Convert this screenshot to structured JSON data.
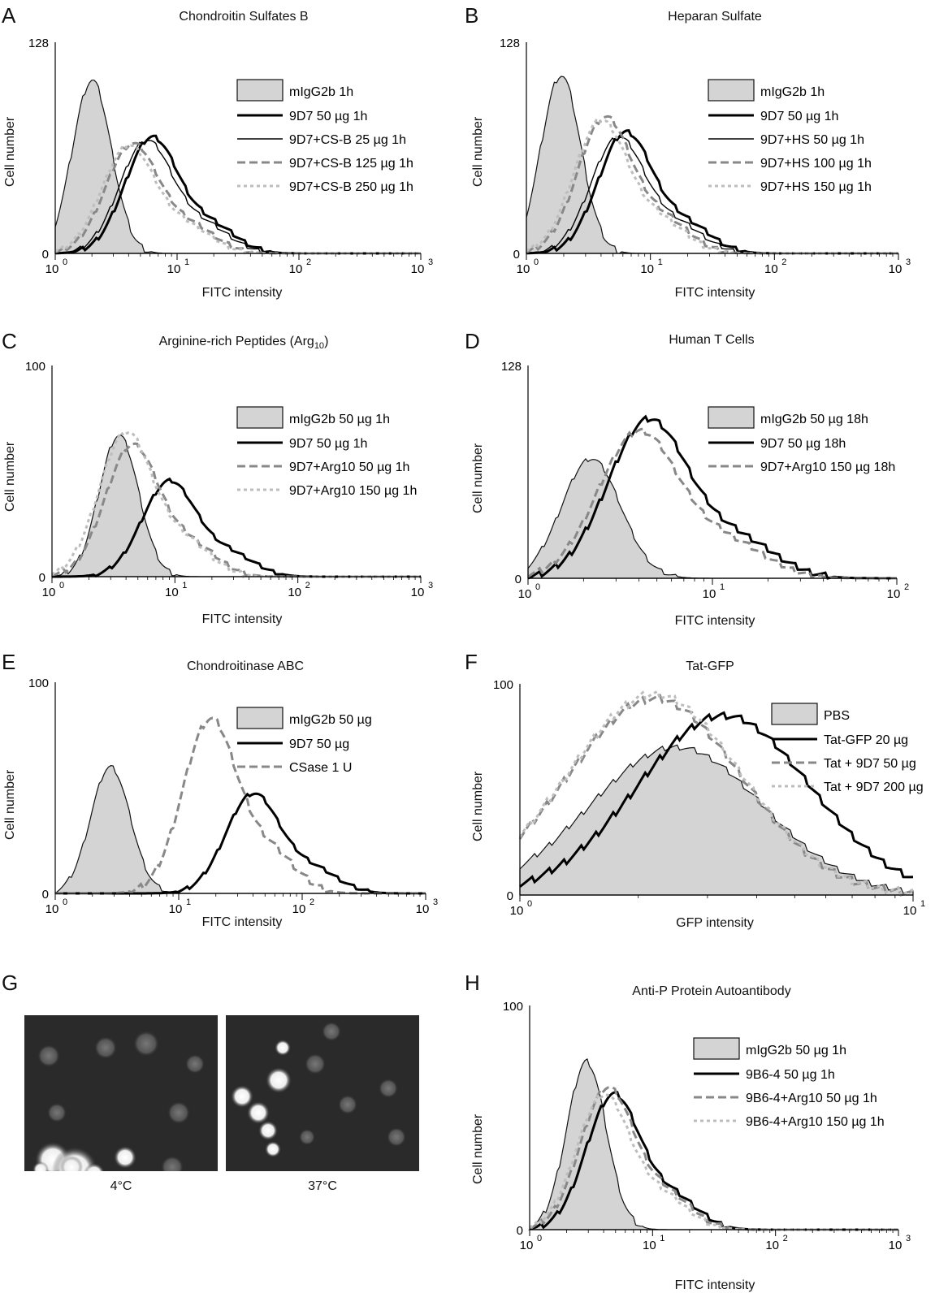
{
  "panels": [
    {
      "label": "A",
      "title": "Chondroitin Sulfates B",
      "xlabel": "FITC intensity",
      "ylabel": "Cell number",
      "ymax": "128",
      "ymin": "0",
      "xticks": [
        "10",
        "10",
        "10",
        "10"
      ],
      "xexp": [
        "0",
        "1",
        "2",
        "3"
      ],
      "legend": [
        "mIgG2b 1h",
        "9D7 50 µg 1h",
        "9D7+CS-B 25 µg 1h",
        "9D7+CS-B 125 µg 1h",
        "9D7+CS-B 250 µg 1h"
      ]
    },
    {
      "label": "B",
      "title": "Heparan Sulfate",
      "xlabel": "FITC intensity",
      "ylabel": "Cell number",
      "ymax": "128",
      "ymin": "0",
      "xticks": [
        "10",
        "10",
        "10",
        "10"
      ],
      "xexp": [
        "0",
        "1",
        "2",
        "3"
      ],
      "legend": [
        "mIgG2b 1h",
        "9D7 50 µg 1h",
        "9D7+HS 50 µg 1h",
        "9D7+HS 100 µg 1h",
        "9D7+HS 150 µg 1h"
      ]
    },
    {
      "label": "C",
      "title": "Arginine-rich Peptides (Arg",
      "title_sub": "10",
      "title_end": ")",
      "xlabel": "FITC intensity",
      "ylabel": "Cell number",
      "ymax": "100",
      "ymin": "0",
      "xticks": [
        "10",
        "10",
        "10",
        "10"
      ],
      "xexp": [
        "0",
        "1",
        "2",
        "3"
      ],
      "legend": [
        "mIgG2b 50 µg 1h",
        "9D7 50 µg 1h",
        "9D7+Arg10 50 µg 1h",
        "9D7+Arg10 150 µg 1h"
      ]
    },
    {
      "label": "D",
      "title": "Human T Cells",
      "xlabel": "FITC intensity",
      "ylabel": "Cell number",
      "ymax": "128",
      "ymin": "0",
      "xticks": [
        "10",
        "10",
        "10"
      ],
      "xexp": [
        "0",
        "1",
        "2"
      ],
      "legend": [
        "mIgG2b 50 µg 18h",
        "9D7 50 µg 18h",
        "9D7+Arg10 150 µg 18h"
      ]
    },
    {
      "label": "E",
      "title": "Chondroitinase ABC",
      "xlabel": "FITC intensity",
      "ylabel": "Cell number",
      "ymax": "100",
      "ymin": "0",
      "xticks": [
        "10",
        "10",
        "10",
        "10"
      ],
      "xexp": [
        "0",
        "1",
        "2",
        "3"
      ],
      "legend": [
        "mIgG2b 50 µg",
        "9D7 50 µg",
        "CSase 1 U"
      ]
    },
    {
      "label": "F",
      "title": "Tat-GFP",
      "xlabel": "GFP intensity",
      "ylabel": "Cell number",
      "ymax": "100",
      "ymin": "0",
      "xticks": [
        "10",
        "10"
      ],
      "xexp": [
        "0",
        "1"
      ],
      "legend": [
        "PBS",
        "Tat-GFP 20 µg",
        "Tat + 9D7 50 µg",
        "Tat + 9D7 200 µg"
      ]
    },
    {
      "label": "H",
      "title": "Anti-P Protein Autoantibody",
      "xlabel": "FITC intensity",
      "ylabel": "Cell number",
      "ymax": "100",
      "ymin": "0",
      "xticks": [
        "10",
        "10",
        "10",
        "10"
      ],
      "xexp": [
        "0",
        "1",
        "2",
        "3"
      ],
      "legend": [
        "mIgG2b 50 µg 1h",
        "9B6-4 50 µg 1h",
        "9B6-4+Arg10 50 µg 1h",
        "9B6-4+Arg10 150 µg 1h"
      ]
    }
  ],
  "panelG": {
    "label": "G",
    "captions": [
      "4°C",
      "37°C"
    ]
  },
  "chart_data": [
    {
      "panel": "A",
      "type": "area",
      "xscale": "log",
      "xlim": [
        1,
        1000
      ],
      "ylim": [
        0,
        128
      ],
      "series": [
        {
          "name": "mIgG2b 1h",
          "peak_x": 2.0,
          "peak_y": 105
        },
        {
          "name": "9D7 50 µg 1h",
          "peak_x": 6.2,
          "peak_y": 70
        },
        {
          "name": "9D7+CS-B 25 µg 1h",
          "peak_x": 5.6,
          "peak_y": 68
        },
        {
          "name": "9D7+CS-B 125 µg 1h",
          "peak_x": 4.3,
          "peak_y": 66
        },
        {
          "name": "9D7+CS-B 250 µg 1h",
          "peak_x": 4.0,
          "peak_y": 65
        }
      ]
    },
    {
      "panel": "B",
      "type": "area",
      "xscale": "log",
      "xlim": [
        1,
        1000
      ],
      "ylim": [
        0,
        128
      ],
      "series": [
        {
          "name": "mIgG2b 1h",
          "peak_x": 1.9,
          "peak_y": 108
        },
        {
          "name": "9D7 50 µg 1h",
          "peak_x": 6.3,
          "peak_y": 73
        },
        {
          "name": "9D7+HS 50 µg 1h",
          "peak_x": 5.5,
          "peak_y": 70
        },
        {
          "name": "9D7+HS 100 µg 1h",
          "peak_x": 4.3,
          "peak_y": 82
        },
        {
          "name": "9D7+HS 150 µg 1h",
          "peak_x": 4.0,
          "peak_y": 80
        }
      ]
    },
    {
      "panel": "C",
      "type": "area",
      "xscale": "log",
      "xlim": [
        1,
        1000
      ],
      "ylim": [
        0,
        100
      ],
      "series": [
        {
          "name": "mIgG2b 50 µg 1h",
          "peak_x": 3.5,
          "peak_y": 67
        },
        {
          "name": "9D7 50 µg 1h",
          "peak_x": 9.0,
          "peak_y": 45
        },
        {
          "name": "9D7+Arg10 50 µg 1h",
          "peak_x": 4.5,
          "peak_y": 62
        },
        {
          "name": "9D7+Arg10 150 µg 1h",
          "peak_x": 4.0,
          "peak_y": 68
        }
      ]
    },
    {
      "panel": "D",
      "type": "area",
      "xscale": "log",
      "xlim": [
        1,
        100
      ],
      "ylim": [
        0,
        128
      ],
      "series": [
        {
          "name": "mIgG2b 50 µg 18h",
          "peak_x": 2.2,
          "peak_y": 72
        },
        {
          "name": "9D7 50 µg 18h",
          "peak_x": 4.5,
          "peak_y": 95
        },
        {
          "name": "9D7+Arg10 150 µg 18h",
          "peak_x": 4.0,
          "peak_y": 88
        }
      ]
    },
    {
      "panel": "E",
      "type": "area",
      "xscale": "log",
      "xlim": [
        1,
        1000
      ],
      "ylim": [
        0,
        100
      ],
      "series": [
        {
          "name": "mIgG2b 50 µg",
          "peak_x": 2.8,
          "peak_y": 60
        },
        {
          "name": "9D7 50 µg",
          "peak_x": 40,
          "peak_y": 47
        },
        {
          "name": "CSase 1 U",
          "peak_x": 18,
          "peak_y": 82
        }
      ]
    },
    {
      "panel": "F",
      "type": "area",
      "xscale": "log",
      "xlim": [
        1,
        10
      ],
      "ylim": [
        0,
        100
      ],
      "series": [
        {
          "name": "PBS",
          "peak_x": 2.5,
          "peak_y": 70
        },
        {
          "name": "Tat-GFP 20 µg",
          "peak_x": 3.3,
          "peak_y": 85
        },
        {
          "name": "Tat + 9D7 50 µg",
          "peak_x": 2.2,
          "peak_y": 93
        },
        {
          "name": "Tat + 9D7 200 µg",
          "peak_x": 2.2,
          "peak_y": 95
        }
      ]
    },
    {
      "panel": "H",
      "type": "area",
      "xscale": "log",
      "xlim": [
        1,
        1000
      ],
      "ylim": [
        0,
        100
      ],
      "series": [
        {
          "name": "mIgG2b 50 µg 1h",
          "peak_x": 2.9,
          "peak_y": 75
        },
        {
          "name": "9B6-4 50 µg 1h",
          "peak_x": 4.8,
          "peak_y": 60
        },
        {
          "name": "9B6-4+Arg10 50 µg 1h",
          "peak_x": 4.3,
          "peak_y": 63
        },
        {
          "name": "9B6-4+Arg10 150 µg 1h",
          "peak_x": 4.0,
          "peak_y": 60
        }
      ]
    }
  ]
}
